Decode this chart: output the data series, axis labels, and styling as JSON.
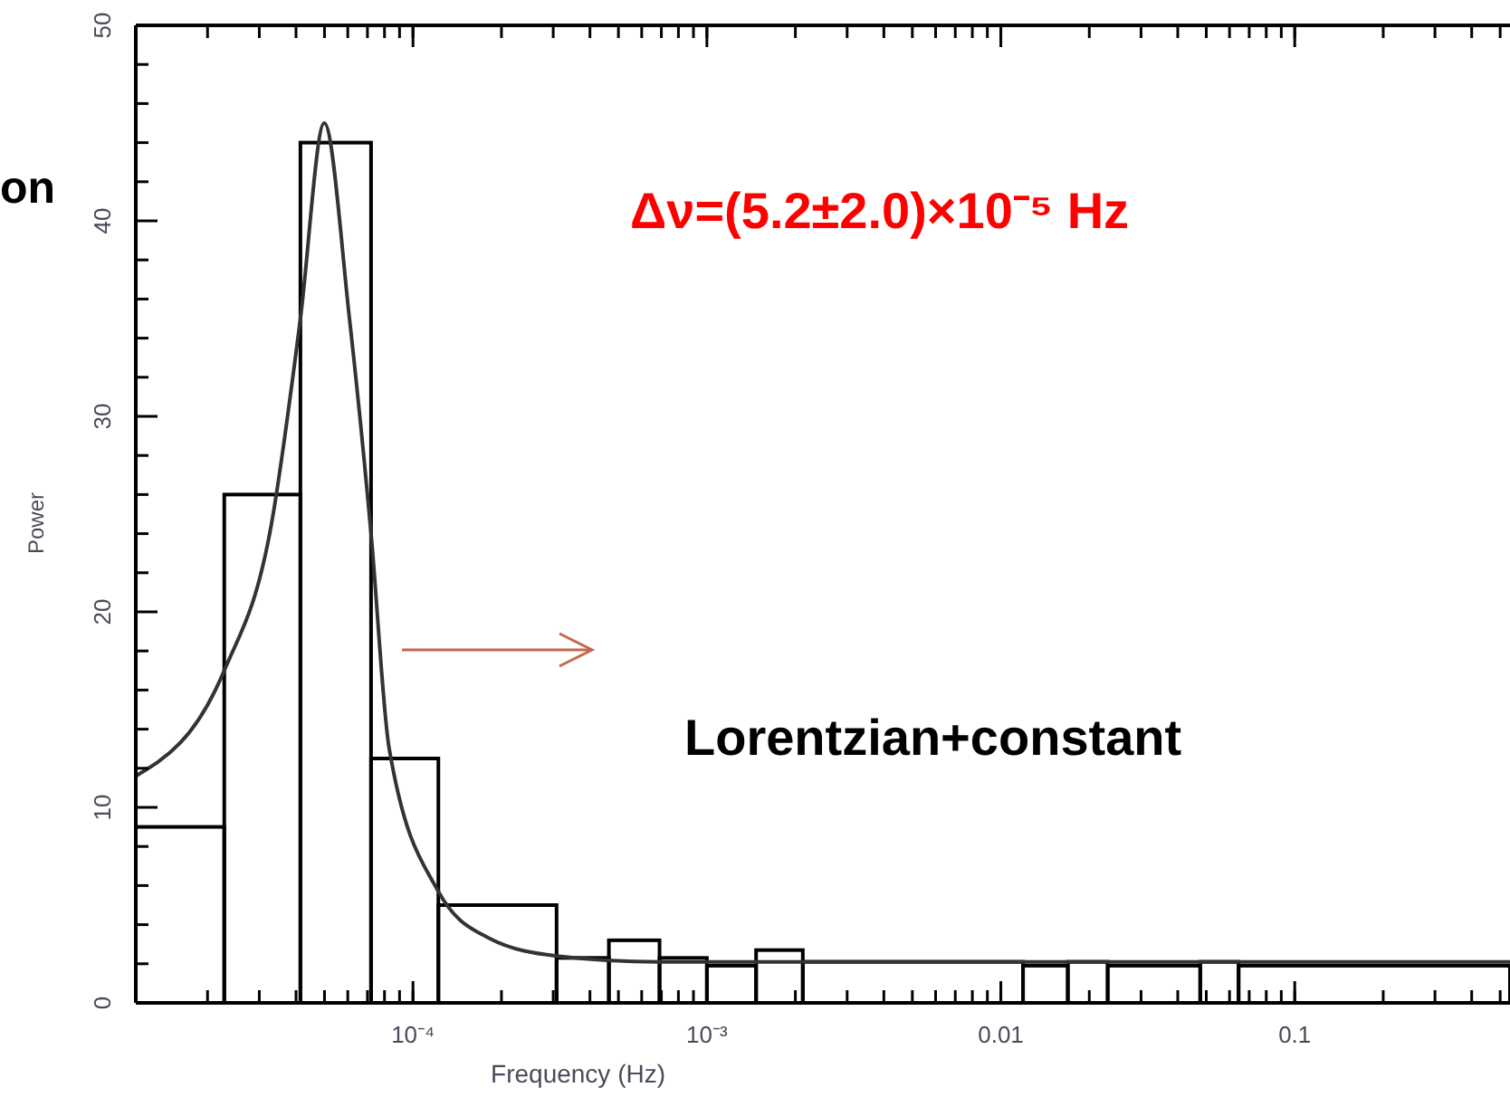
{
  "chart_data": {
    "type": "histogram",
    "xlabel": "Frequency (Hz)",
    "ylabel": "Power",
    "log": "x",
    "color": "#000000",
    "bins": [
      1.14e-05,
      2.28e-05,
      4.14e-05,
      7.2e-05,
      0.000122,
      0.000308,
      0.000464,
      0.00069,
      0.001,
      0.00147,
      0.00212,
      0.0119,
      0.0169,
      0.0231,
      0.0477,
      0.0644,
      0.54
    ],
    "values": [
      9,
      26,
      44,
      12.5,
      5,
      2.3,
      3.2,
      2.3,
      1.9,
      2.7,
      2.1,
      1.9,
      2.1,
      1.9,
      2.1,
      1.9
    ],
    "series": [
      {
        "type": "line",
        "color": "#333333",
        "x": [
          1.14e-05,
          2.28e-05,
          3.3e-05,
          4.14e-05,
          4.99e-05,
          6.08e-05,
          7.2e-05,
          8.3e-05,
          0.000122,
          0.000182,
          0.000308,
          0.00069,
          0.01,
          0.54
        ],
        "values": [
          11.6,
          17,
          24.5,
          35,
          45,
          35,
          24,
          13,
          5.7,
          3.3,
          2.4,
          2.1,
          2.1,
          2.1
        ]
      }
    ],
    "xlim": [
      1.14e-05,
      0.54
    ],
    "ylim": [
      0,
      50
    ],
    "xticks": [
      {
        "value": 0.0001,
        "label": "10⁻⁴"
      },
      {
        "value": 0.001,
        "label": "10⁻³"
      },
      {
        "value": 0.01,
        "label": "0.01"
      },
      {
        "value": 0.1,
        "label": "0.1"
      }
    ],
    "yticks": [
      0,
      10,
      20,
      30,
      40,
      50
    ],
    "annotations": [
      "on",
      "Δν=(5.2±2.0)×10⁻⁵ Hz",
      "Lorentzian+constant"
    ]
  }
}
